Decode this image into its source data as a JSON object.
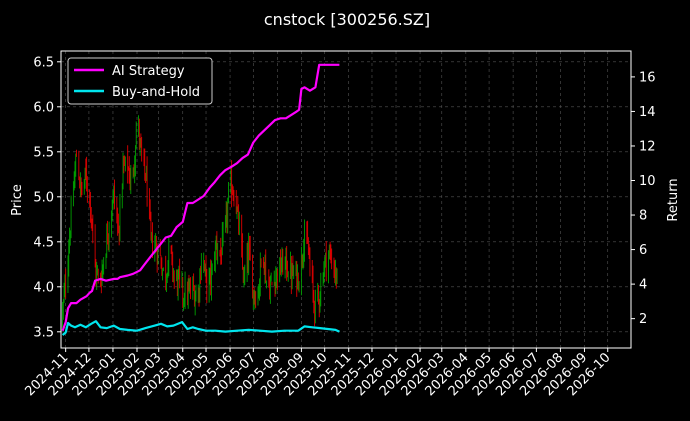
{
  "chart_data": {
    "type": "line",
    "title": "cnstock [300256.SZ]",
    "ylabel_left": "Price",
    "ylabel_right": "Return",
    "ylim_left": [
      3.32,
      6.62
    ],
    "ylim_right": [
      0.3,
      17.5
    ],
    "xlim": [
      "2024-10-26",
      "2026-10-31"
    ],
    "grid": true,
    "legend_position": "top-left",
    "colors": {
      "background": "#000000",
      "grid": "#555555",
      "ai": "#ff00ff",
      "bh": "#00e5ee",
      "candle_up": "#00a000",
      "candle_down": "#dd0000"
    },
    "x_ticks": [
      "2024-11",
      "2024-12",
      "2025-01",
      "2025-02",
      "2025-03",
      "2025-04",
      "2025-05",
      "2025-06",
      "2025-07",
      "2025-08",
      "2025-09",
      "2025-10",
      "2025-11",
      "2025-12",
      "2026-01",
      "2026-02",
      "2026-03",
      "2026-04",
      "2026-05",
      "2026-06",
      "2026-07",
      "2026-08",
      "2026-09",
      "2026-10"
    ],
    "y_ticks_left": [
      "3.5",
      "4.0",
      "4.5",
      "5.0",
      "5.5",
      "6.0",
      "6.5"
    ],
    "y_ticks_right": [
      "2",
      "4",
      "6",
      "8",
      "10",
      "12",
      "14",
      "16"
    ],
    "series": [
      {
        "name": "AI Strategy",
        "color": "#ff00ff",
        "points": [
          [
            "2024-10-28",
            1.3
          ],
          [
            "2024-11-01",
            1.8
          ],
          [
            "2024-11-04",
            2.6
          ],
          [
            "2024-11-08",
            2.9
          ],
          [
            "2024-11-15",
            2.9
          ],
          [
            "2024-11-20",
            3.1
          ],
          [
            "2024-11-28",
            3.3
          ],
          [
            "2024-12-02",
            3.5
          ],
          [
            "2024-12-05",
            3.6
          ],
          [
            "2024-12-09",
            4.2
          ],
          [
            "2024-12-16",
            4.3
          ],
          [
            "2024-12-23",
            4.2
          ],
          [
            "2025-01-02",
            4.3
          ],
          [
            "2025-01-07",
            4.3
          ],
          [
            "2025-01-10",
            4.4
          ],
          [
            "2025-01-20",
            4.5
          ],
          [
            "2025-01-27",
            4.6
          ],
          [
            "2025-02-05",
            4.8
          ],
          [
            "2025-02-10",
            5.1
          ],
          [
            "2025-02-17",
            5.5
          ],
          [
            "2025-02-24",
            5.9
          ],
          [
            "2025-03-03",
            6.3
          ],
          [
            "2025-03-10",
            6.7
          ],
          [
            "2025-03-17",
            6.8
          ],
          [
            "2025-03-24",
            7.3
          ],
          [
            "2025-04-01",
            7.6
          ],
          [
            "2025-04-07",
            8.7
          ],
          [
            "2025-04-14",
            8.7
          ],
          [
            "2025-04-21",
            8.9
          ],
          [
            "2025-04-28",
            9.1
          ],
          [
            "2025-05-06",
            9.6
          ],
          [
            "2025-05-12",
            9.9
          ],
          [
            "2025-05-19",
            10.3
          ],
          [
            "2025-05-26",
            10.6
          ],
          [
            "2025-06-03",
            10.8
          ],
          [
            "2025-06-10",
            11.0
          ],
          [
            "2025-06-17",
            11.3
          ],
          [
            "2025-06-24",
            11.5
          ],
          [
            "2025-07-01",
            12.2
          ],
          [
            "2025-07-08",
            12.6
          ],
          [
            "2025-07-15",
            12.9
          ],
          [
            "2025-07-22",
            13.2
          ],
          [
            "2025-07-29",
            13.5
          ],
          [
            "2025-08-05",
            13.6
          ],
          [
            "2025-08-12",
            13.6
          ],
          [
            "2025-08-19",
            13.8
          ],
          [
            "2025-08-26",
            14.0
          ],
          [
            "2025-08-29",
            14.1
          ],
          [
            "2025-09-01",
            15.3
          ],
          [
            "2025-09-05",
            15.4
          ],
          [
            "2025-09-12",
            15.2
          ],
          [
            "2025-09-19",
            15.4
          ],
          [
            "2025-09-24",
            16.7
          ],
          [
            "2025-10-01",
            16.7
          ],
          [
            "2025-10-10",
            16.7
          ],
          [
            "2025-10-20",
            16.7
          ]
        ]
      },
      {
        "name": "Buy-and-Hold",
        "color": "#00e5ee",
        "points": [
          [
            "2024-10-28",
            1.05
          ],
          [
            "2024-11-01",
            1.2
          ],
          [
            "2024-11-04",
            1.75
          ],
          [
            "2024-11-08",
            1.6
          ],
          [
            "2024-11-13",
            1.5
          ],
          [
            "2024-11-20",
            1.65
          ],
          [
            "2024-11-27",
            1.5
          ],
          [
            "2024-12-04",
            1.7
          ],
          [
            "2024-12-10",
            1.85
          ],
          [
            "2024-12-16",
            1.5
          ],
          [
            "2024-12-24",
            1.45
          ],
          [
            "2025-01-02",
            1.6
          ],
          [
            "2025-01-10",
            1.4
          ],
          [
            "2025-01-20",
            1.35
          ],
          [
            "2025-02-01",
            1.3
          ],
          [
            "2025-02-12",
            1.45
          ],
          [
            "2025-02-24",
            1.6
          ],
          [
            "2025-03-04",
            1.7
          ],
          [
            "2025-03-12",
            1.55
          ],
          [
            "2025-03-20",
            1.6
          ],
          [
            "2025-03-31",
            1.8
          ],
          [
            "2025-04-07",
            1.4
          ],
          [
            "2025-04-14",
            1.5
          ],
          [
            "2025-04-21",
            1.4
          ],
          [
            "2025-05-01",
            1.3
          ],
          [
            "2025-05-13",
            1.3
          ],
          [
            "2025-05-26",
            1.25
          ],
          [
            "2025-06-10",
            1.3
          ],
          [
            "2025-06-25",
            1.35
          ],
          [
            "2025-07-10",
            1.3
          ],
          [
            "2025-07-25",
            1.25
          ],
          [
            "2025-08-10",
            1.3
          ],
          [
            "2025-08-28",
            1.3
          ],
          [
            "2025-09-05",
            1.55
          ],
          [
            "2025-09-15",
            1.5
          ],
          [
            "2025-09-25",
            1.45
          ],
          [
            "2025-10-05",
            1.4
          ],
          [
            "2025-10-15",
            1.35
          ],
          [
            "2025-10-20",
            1.25
          ]
        ]
      }
    ],
    "candles": {
      "start": "2024-10-28",
      "end": "2025-10-17",
      "close": [
        3.7,
        4.25,
        4.88,
        5.47,
        5.04,
        5.24,
        4.94,
        4.19,
        4.03,
        4.34,
        4.72,
        5.03,
        4.6,
        5.32,
        5.34,
        5.1,
        5.89,
        5.41,
        5.2,
        4.5,
        4.45,
        4.33,
        4.08,
        4.42,
        4.09,
        4.05,
        3.92,
        3.93,
        3.97,
        3.86,
        4.39,
        4.01,
        4.1,
        4.48,
        4.36,
        4.64,
        5.15,
        5.04,
        4.61,
        4.04,
        4.39,
        3.94,
        3.93,
        4.45,
        4.0,
        4.02,
        4.15,
        4.23,
        4.26,
        4.14,
        4.13,
        4.11,
        4.63,
        4.31,
        3.82,
        3.85,
        4.19,
        4.38,
        4.29,
        4.06
      ]
    }
  }
}
